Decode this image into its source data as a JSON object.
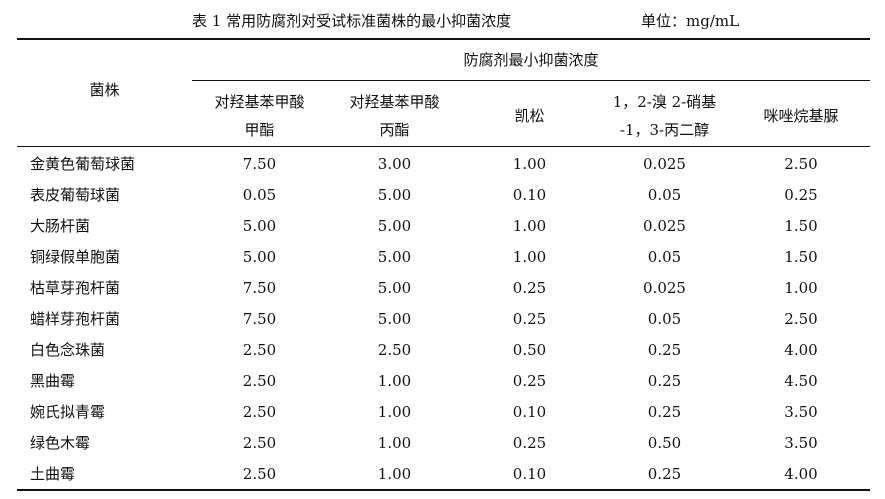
{
  "title": {
    "main": "表 1 常用防腐剂对受试标准菌株的最小抑菌浓度",
    "unit": "单位：mg/mL"
  },
  "header": {
    "strain": "菌株",
    "group": "防腐剂最小抑菌浓度",
    "columns": [
      {
        "line1": "对羟基苯甲酸",
        "line2": "甲酯"
      },
      {
        "line1": "对羟基苯甲酸",
        "line2": "丙酯"
      },
      {
        "line1": "凯松",
        "line2": ""
      },
      {
        "line1": "1，2-溴 2-硝基",
        "line2": "-1，3-丙二醇"
      },
      {
        "line1": "咪唑烷基脲",
        "line2": ""
      }
    ]
  },
  "rows": [
    {
      "strain": "金黄色葡萄球菌",
      "values": [
        "7.50",
        "3.00",
        "1.00",
        "0.025",
        "2.50"
      ]
    },
    {
      "strain": "表皮葡萄球菌",
      "values": [
        "0.05",
        "5.00",
        "0.10",
        "0.05",
        "0.25"
      ]
    },
    {
      "strain": "大肠杆菌",
      "values": [
        "5.00",
        "5.00",
        "1.00",
        "0.025",
        "1.50"
      ]
    },
    {
      "strain": "铜绿假单胞菌",
      "values": [
        "5.00",
        "5.00",
        "1.00",
        "0.05",
        "1.50"
      ]
    },
    {
      "strain": "枯草芽孢杆菌",
      "values": [
        "7.50",
        "5.00",
        "0.25",
        "0.025",
        "1.00"
      ]
    },
    {
      "strain": "蜡样芽孢杆菌",
      "values": [
        "7.50",
        "5.00",
        "0.25",
        "0.05",
        "2.50"
      ]
    },
    {
      "strain": "白色念珠菌",
      "values": [
        "2.50",
        "2.50",
        "0.50",
        "0.25",
        "4.00"
      ]
    },
    {
      "strain": "黑曲霉",
      "values": [
        "2.50",
        "1.00",
        "0.25",
        "0.25",
        "4.50"
      ]
    },
    {
      "strain": "婉氏拟青霉",
      "values": [
        "2.50",
        "1.00",
        "0.10",
        "0.25",
        "3.50"
      ]
    },
    {
      "strain": "绿色木霉",
      "values": [
        "2.50",
        "1.00",
        "0.25",
        "0.50",
        "3.50"
      ]
    },
    {
      "strain": "土曲霉",
      "values": [
        "2.50",
        "1.00",
        "0.10",
        "0.25",
        "4.00"
      ]
    }
  ]
}
